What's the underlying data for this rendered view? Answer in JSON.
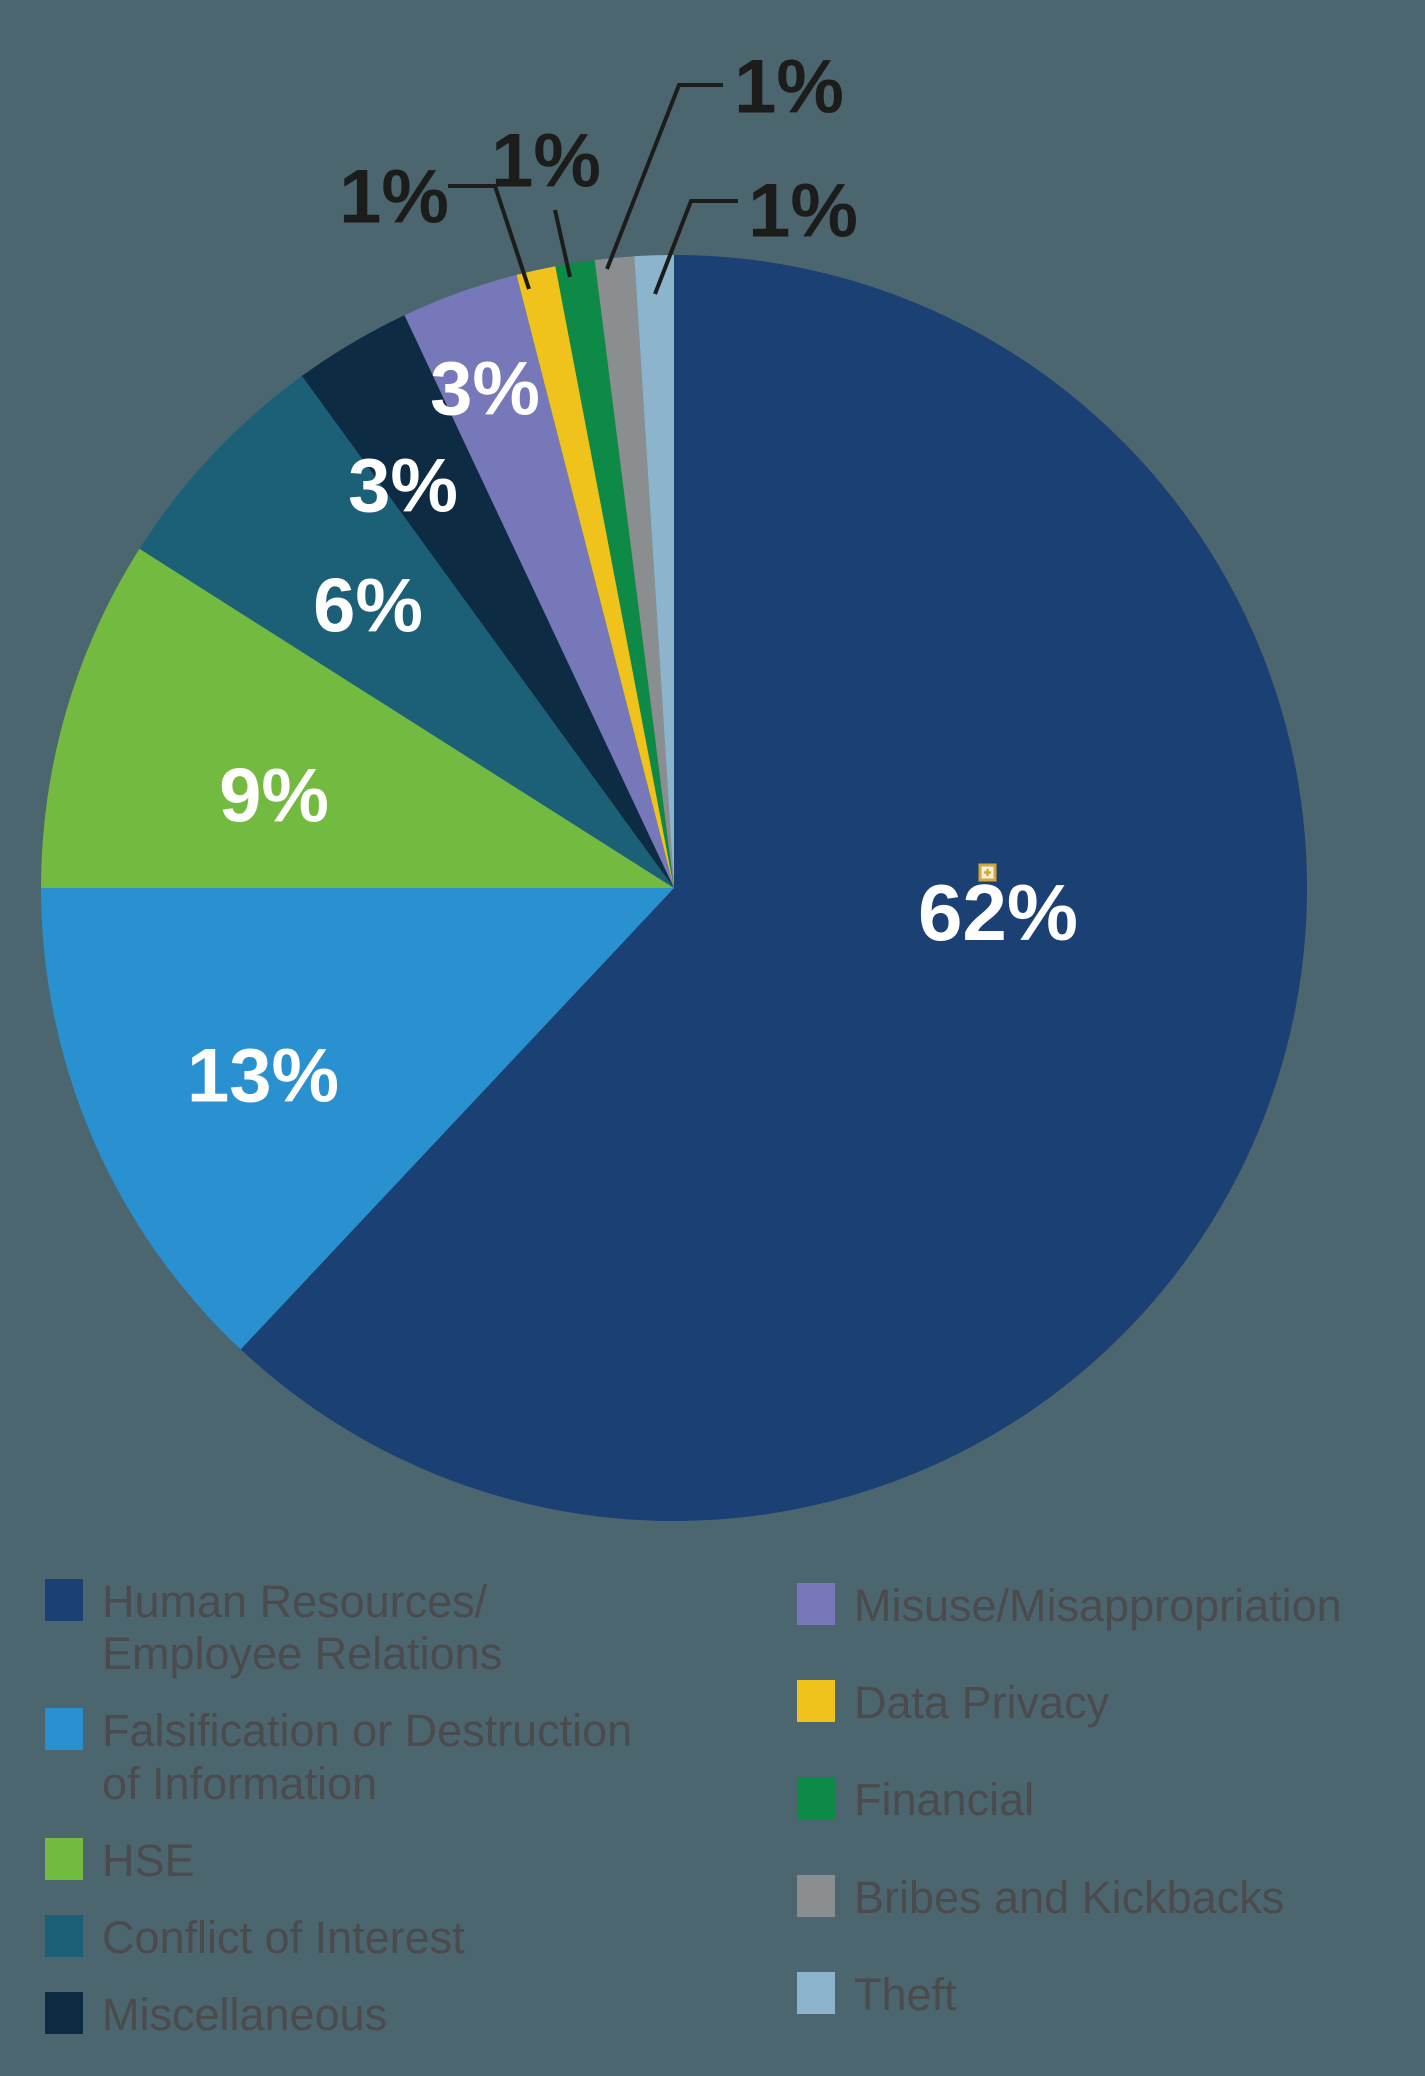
{
  "chart_data": {
    "type": "pie",
    "direction": "clockwise",
    "start_angle_deg": 0,
    "legend_position": "bottom",
    "unit": "percent of cases",
    "slices": [
      {
        "key": "hr",
        "label": "Human Resources/Employee Relations",
        "value": 62,
        "pct_label": "62%",
        "color": "#1b4074"
      },
      {
        "key": "falsification",
        "label": "Falsification or Destruction of Information",
        "value": 13,
        "pct_label": "13%",
        "color": "#2991d0"
      },
      {
        "key": "hse",
        "label": "HSE",
        "value": 9,
        "pct_label": "9%",
        "color": "#73ba41"
      },
      {
        "key": "conflict",
        "label": "Conflict of Interest",
        "value": 6,
        "pct_label": "6%",
        "color": "#1c6078"
      },
      {
        "key": "miscellaneous",
        "label": "Miscellaneous",
        "value": 3,
        "pct_label": "3%",
        "color": "#0d2b42"
      },
      {
        "key": "misuse",
        "label": "Misuse/Misappropriation",
        "value": 3,
        "pct_label": "3%",
        "color": "#7678b9"
      },
      {
        "key": "data-privacy",
        "label": "Data Privacy",
        "value": 1,
        "pct_label": "1%",
        "color": "#efc31b"
      },
      {
        "key": "financial",
        "label": "Financial",
        "value": 1,
        "pct_label": "1%",
        "color": "#0d8a45"
      },
      {
        "key": "bribes",
        "label": "Bribes and Kickbacks",
        "value": 1,
        "pct_label": "1%",
        "color": "#8a8e91"
      },
      {
        "key": "theft",
        "label": "Theft",
        "value": 1,
        "pct_label": "1%",
        "color": "#8cb5cd"
      }
    ]
  },
  "legend": {
    "left": [
      {
        "slice": 0,
        "lines": [
          "Human Resources/",
          "Employee Relations"
        ]
      },
      {
        "slice": 1,
        "lines": [
          "Falsification or Destruction",
          "of Information"
        ]
      },
      {
        "slice": 2,
        "lines": [
          "HSE"
        ]
      },
      {
        "slice": 3,
        "lines": [
          "Conflict of Interest"
        ]
      },
      {
        "slice": 4,
        "lines": [
          "Miscellaneous"
        ]
      }
    ],
    "right": [
      {
        "slice": 5,
        "lines": [
          "Misuse/Misappropriation"
        ]
      },
      {
        "slice": 6,
        "lines": [
          "Data Privacy"
        ]
      },
      {
        "slice": 7,
        "lines": [
          "Financial"
        ]
      },
      {
        "slice": 8,
        "lines": [
          "Bribes and Kickbacks"
        ]
      },
      {
        "slice": 9,
        "lines": [
          "Theft"
        ]
      }
    ]
  },
  "colors": {
    "background": "#4c666f",
    "inside_label_text": "#ffffff",
    "outside_label_text": "#1c1c1a",
    "leader_line": "#1c1c1a",
    "legend_text": "#4b4b4d",
    "artifact_yellow": "#d3a73a"
  }
}
